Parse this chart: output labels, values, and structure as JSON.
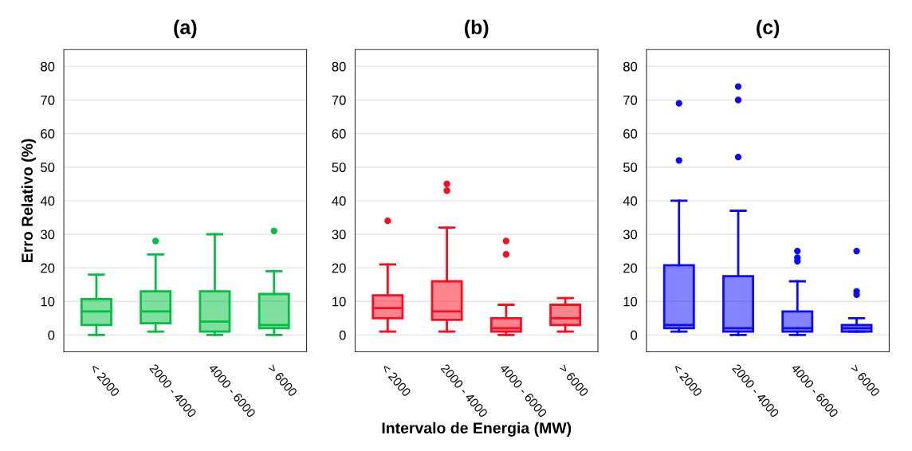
{
  "chart_data": [
    {
      "type": "box",
      "title": "(a)",
      "ylabel": "Erro Relativo (%)",
      "categories": [
        "< 2000",
        "2000 - 4000",
        "4000 - 6000",
        "> 6000"
      ],
      "color": "#00c040",
      "ylim": [
        -5,
        85
      ],
      "yticks": [
        0,
        10,
        20,
        30,
        40,
        50,
        60,
        70,
        80
      ],
      "grid": "y",
      "boxes": [
        {
          "low": 0,
          "q1": 3,
          "median": 7,
          "q3": 10.7,
          "high": 18
        },
        {
          "low": 1,
          "q1": 3.5,
          "median": 7,
          "q3": 13,
          "high": 24,
          "outliers": [
            28
          ]
        },
        {
          "low": 0,
          "q1": 1,
          "median": 4,
          "q3": 13,
          "high": 30
        },
        {
          "low": 0,
          "q1": 2,
          "median": 3,
          "q3": 12.2,
          "high": 19,
          "outliers": [
            31
          ]
        }
      ]
    },
    {
      "type": "box",
      "title": "(b)",
      "xlabel": "Intervalo de Energia (MW)",
      "categories": [
        "< 2000",
        "2000 - 4000",
        "4000 - 6000",
        "> 6000"
      ],
      "color": "#ff0a1e",
      "ylim": [
        -5,
        85
      ],
      "yticks": [
        0,
        10,
        20,
        30,
        40,
        50,
        60,
        70,
        80
      ],
      "grid": "y",
      "boxes": [
        {
          "low": 1,
          "q1": 5,
          "median": 8,
          "q3": 11.8,
          "high": 21,
          "outliers": [
            34
          ]
        },
        {
          "low": 1,
          "q1": 4.5,
          "median": 7,
          "q3": 16,
          "high": 32,
          "outliers": [
            43,
            45
          ]
        },
        {
          "low": 0,
          "q1": 1,
          "median": 2,
          "q3": 5,
          "high": 9,
          "outliers": [
            24,
            28
          ]
        },
        {
          "low": 1,
          "q1": 3,
          "median": 5,
          "q3": 9,
          "high": 11
        }
      ]
    },
    {
      "type": "box",
      "title": "(c)",
      "categories": [
        "< 2000",
        "2000 - 4000",
        "4000 - 6000",
        "> 6000"
      ],
      "color": "#0a0aff",
      "ylim": [
        -5,
        85
      ],
      "yticks": [
        0,
        10,
        20,
        30,
        40,
        50,
        60,
        70,
        80
      ],
      "grid": "y",
      "boxes": [
        {
          "low": 1,
          "q1": 2,
          "median": 3,
          "q3": 20.8,
          "high": 40,
          "outliers": [
            52,
            69
          ]
        },
        {
          "low": 0,
          "q1": 1,
          "median": 2,
          "q3": 17.5,
          "high": 37,
          "outliers": [
            53,
            70,
            74
          ]
        },
        {
          "low": 0,
          "q1": 1,
          "median": 2,
          "q3": 7,
          "high": 16,
          "outliers": [
            22,
            23,
            25
          ]
        },
        {
          "low": 1,
          "q1": 1,
          "median": 2,
          "q3": 3,
          "high": 5,
          "outliers": [
            12,
            13,
            25
          ]
        }
      ]
    }
  ]
}
